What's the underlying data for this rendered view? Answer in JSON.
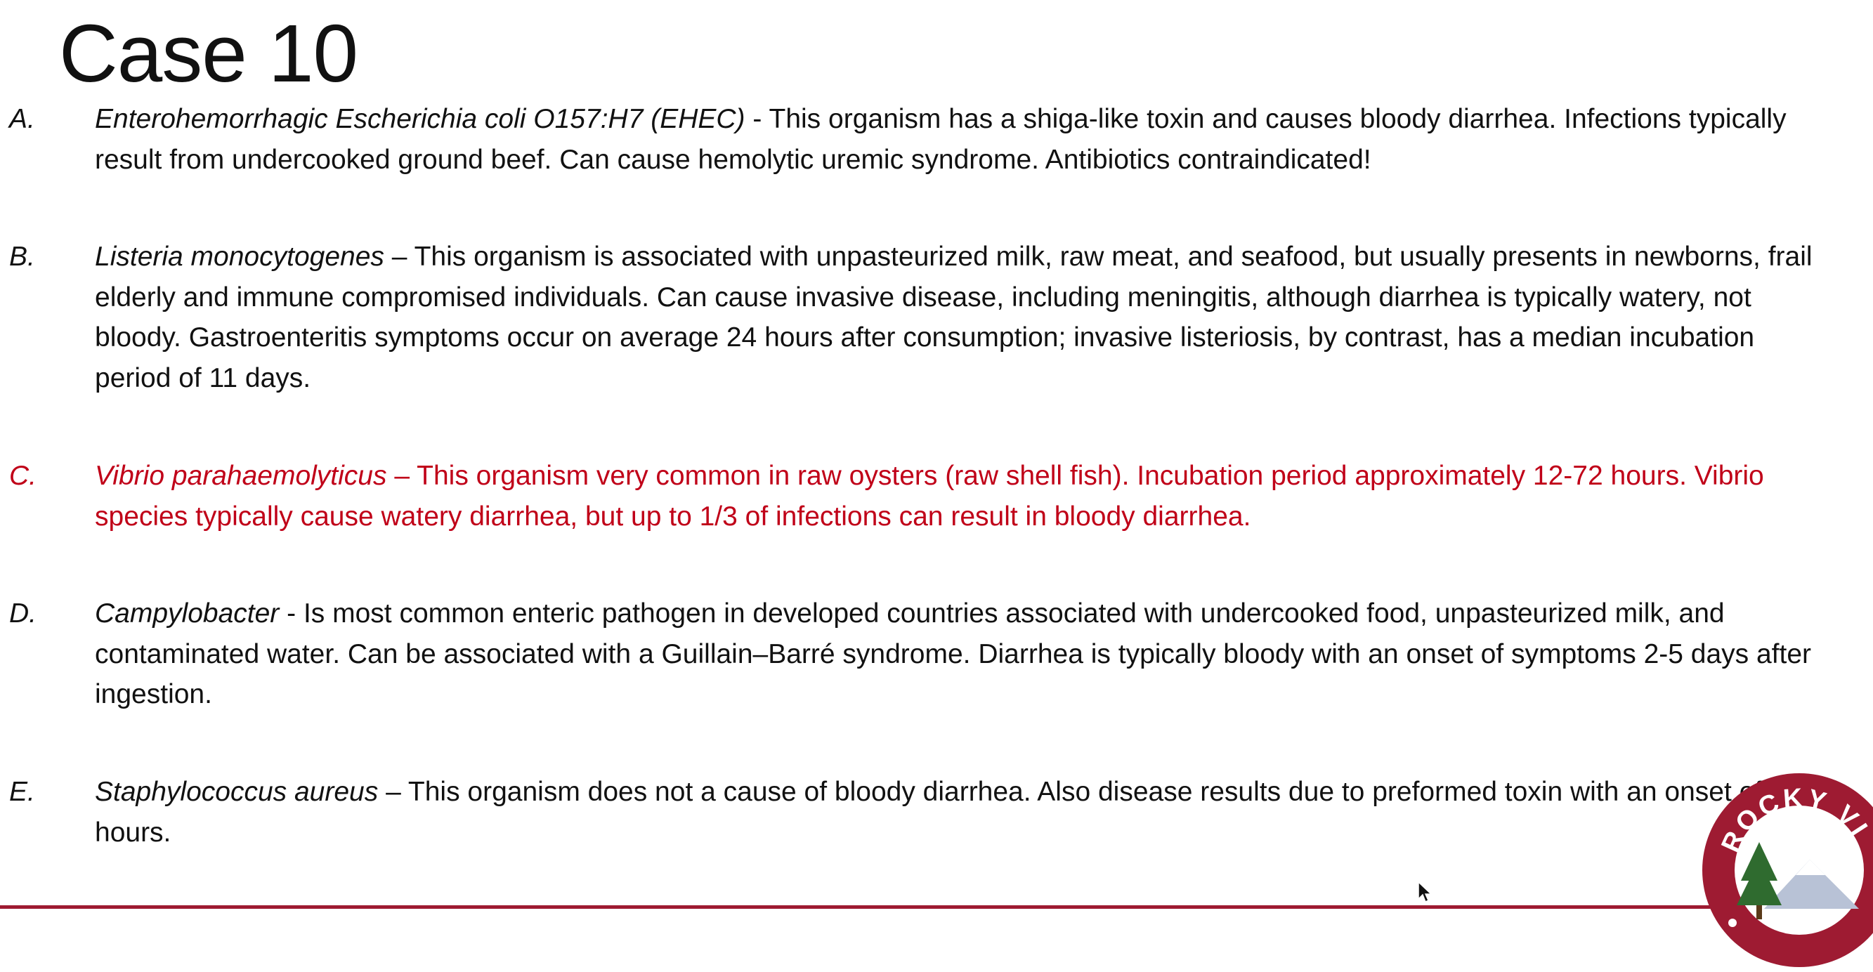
{
  "slide": {
    "title": "Case 10"
  },
  "answers": [
    {
      "letter": "A.",
      "organism": "Enterohemorrhagic Escherichia coli O157:H7 (EHEC)",
      "description": " - This organism has a shiga-like toxin and causes bloody diarrhea. Infections typically result from undercooked ground beef.  Can cause hemolytic uremic syndrome. Antibiotics contraindicated!",
      "highlighted": false
    },
    {
      "letter": "B.",
      "organism": "Listeria monocytogenes",
      "description": " – This organism is associated with unpasteurized milk, raw meat, and seafood, but usually presents in newborns, frail elderly and immune compromised individuals. Can cause invasive disease, including meningitis, although diarrhea is typically watery, not bloody. Gastroenteritis symptoms occur on average 24 hours after consumption; invasive listeriosis, by contrast, has a median incubation period of 11 days.",
      "highlighted": false
    },
    {
      "letter": "C.",
      "organism": "Vibrio parahaemolyticus",
      "description": " – This organism very common in raw oysters (raw shell fish). Incubation period approximately 12-72 hours. Vibrio species typically cause watery diarrhea, but up to 1/3 of infections can result in bloody diarrhea.",
      "highlighted": true
    },
    {
      "letter": "D.",
      "organism": "Campylobacter",
      "description": " -  Is most common enteric pathogen in developed countries associated with undercooked food, unpasteurized milk, and contaminated water. Can be associated with a Guillain–Barré syndrome. Diarrhea is typically bloody with an onset of symptoms 2-5 days after ingestion.",
      "highlighted": false
    },
    {
      "letter": "E.",
      "organism": "Staphylococcus aureus",
      "description": " – This organism does not a cause of bloody diarrhea.  Also disease results due to preformed toxin with an onset of 2-6 hours.",
      "highlighted": false
    }
  ],
  "logo": {
    "text": "ROCKY VI"
  },
  "colors": {
    "highlight": "#c00018",
    "text": "#111111",
    "rule": "#9e1b32",
    "logo_ring": "#9e1b32"
  }
}
